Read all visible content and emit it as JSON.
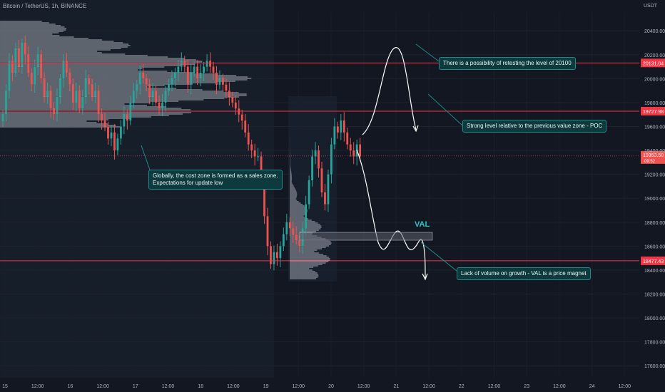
{
  "header": {
    "title": "Bitcoin / TetherUS, 1h, BINANCE"
  },
  "axis": {
    "currency": "USDT"
  },
  "annotations": {
    "retest": "There is a possibility of retesting the level of 20100",
    "poc": "Strong level relative to the previous value zone - POC",
    "cost_line1": "Globally, the cost zone is formed as a sales zone.",
    "cost_line2": "Expectations for update low",
    "val_magnet": "Lack of volume on growth - VAL is a price magnet",
    "val": "VAL"
  },
  "colors": {
    "background": "#131722",
    "up": "#26a69a",
    "down": "#ef5350",
    "level": "#f23645",
    "annotation_bg": "#0e3a3d",
    "annotation_border": "#1f8a8a",
    "val_text": "#26c6c6"
  },
  "chart_data": {
    "type": "candlestick",
    "ylim": [
      17500,
      20550
    ],
    "yticks": [
      17600,
      17800,
      18000,
      18200,
      18400,
      18600,
      18800,
      19000,
      19200,
      19400,
      19600,
      19800,
      20000,
      20200,
      20400
    ],
    "xticks": [
      "15",
      "12:00",
      "16",
      "12:00",
      "17",
      "12:00",
      "18",
      "12:00",
      "19",
      "12:00",
      "20",
      "12:00",
      "21",
      "12:00",
      "22",
      "12:00",
      "23",
      "12:00",
      "24",
      "12:00"
    ],
    "levels": [
      {
        "price": 20131.04,
        "label": "20131.04"
      },
      {
        "price": 19727.98,
        "label": "19727.98"
      },
      {
        "price": 18477.43,
        "label": "18477.43"
      }
    ],
    "current_price": {
      "price": 19353.5,
      "label": "19353.50",
      "timer": "09:52"
    },
    "closes": [
      19700,
      19900,
      20150,
      20050,
      20250,
      20100,
      20300,
      20200,
      20050,
      19950,
      20100,
      20200,
      20000,
      19850,
      19900,
      19750,
      19700,
      19850,
      20000,
      20150,
      20050,
      19950,
      19800,
      19900,
      19750,
      19850,
      20000,
      19950,
      19850,
      19900,
      19700,
      19650,
      19600,
      19500,
      19550,
      19400,
      19500,
      19600,
      19700,
      19650,
      19800,
      19900,
      19950,
      20050,
      20000,
      19950,
      19850,
      19900,
      19800,
      19750,
      19800,
      19900,
      19950,
      20000,
      20050,
      20100,
      20150,
      20100,
      19950,
      20050,
      20100,
      20000,
      20050,
      20100,
      20150,
      20100,
      20050,
      19950,
      20000,
      19950,
      19900,
      19850,
      19800,
      19750,
      19700,
      19650,
      19550,
      19450,
      19400,
      19350,
      19350,
      19150,
      18850,
      18600,
      18450,
      18550,
      18500,
      18600,
      18700,
      18800,
      18750,
      18700,
      18650,
      18600,
      18750,
      18950,
      19150,
      19350,
      19400,
      19250,
      19050,
      18950,
      19200,
      19450,
      19600,
      19550,
      19650,
      19550,
      19450,
      19400,
      19350,
      19450,
      19350
    ],
    "volume_profile_left_note": "",
    "val_zone": {
      "from": 18570,
      "to": 18630
    }
  }
}
